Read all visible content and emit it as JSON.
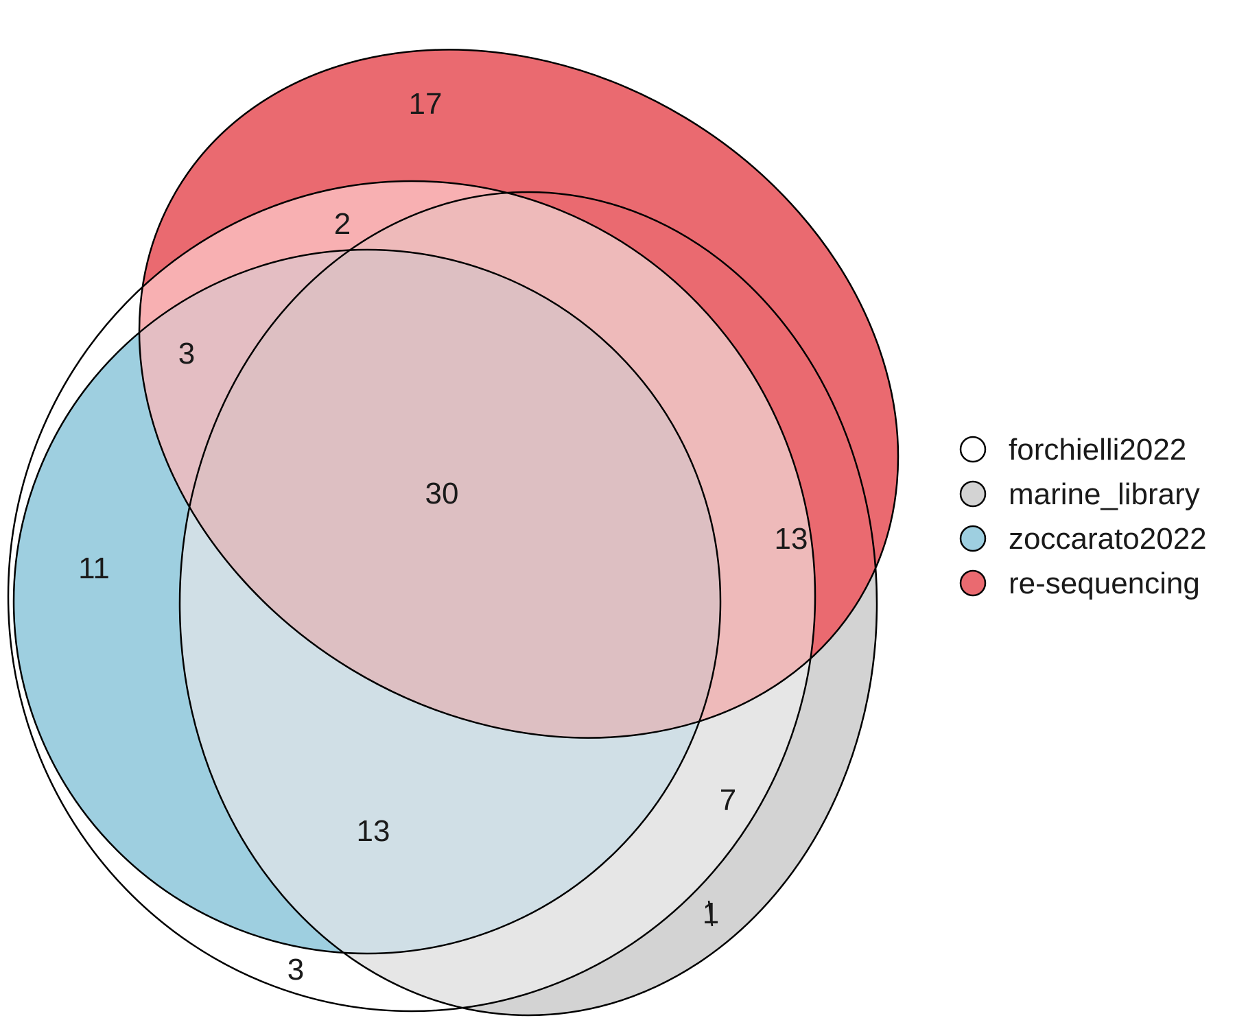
{
  "sets": [
    {
      "key": "forchielli",
      "name": "forchielli2022",
      "color": "#ffffff"
    },
    {
      "key": "marine",
      "name": "marine_library",
      "color": "#d3d3d3"
    },
    {
      "key": "zoccarato",
      "name": "zoccarato2022",
      "color": "#9ecfe0"
    },
    {
      "key": "reseq",
      "name": "re-sequencing",
      "color": "#ea6a70"
    }
  ],
  "regions": [
    {
      "name": "re-sequencing only",
      "sets": [
        "re-sequencing"
      ],
      "count": "17"
    },
    {
      "name": "forchielli2022 & re-sequencing",
      "sets": [
        "forchielli2022",
        "re-sequencing"
      ],
      "count": "2"
    },
    {
      "name": "forchielli2022 & zoccarato2022 & re-sequencing",
      "sets": [
        "forchielli2022",
        "zoccarato2022",
        "re-sequencing"
      ],
      "count": "3"
    },
    {
      "name": "all four sets",
      "sets": [
        "forchielli2022",
        "marine_library",
        "zoccarato2022",
        "re-sequencing"
      ],
      "count": "30"
    },
    {
      "name": "forchielli2022 & marine_library & re-sequencing",
      "sets": [
        "forchielli2022",
        "marine_library",
        "re-sequencing"
      ],
      "count": "13"
    },
    {
      "name": "forchielli2022 & zoccarato2022",
      "sets": [
        "forchielli2022",
        "zoccarato2022"
      ],
      "count": "11"
    },
    {
      "name": "forchielli2022 & marine_library & zoccarato2022",
      "sets": [
        "forchielli2022",
        "marine_library",
        "zoccarato2022"
      ],
      "count": "13"
    },
    {
      "name": "forchielli2022 & marine_library",
      "sets": [
        "forchielli2022",
        "marine_library"
      ],
      "count": "7"
    },
    {
      "name": "forchielli2022 only",
      "sets": [
        "forchielli2022"
      ],
      "count": "3"
    },
    {
      "name": "marine_library only",
      "sets": [
        "marine_library"
      ],
      "count": "1"
    }
  ]
}
